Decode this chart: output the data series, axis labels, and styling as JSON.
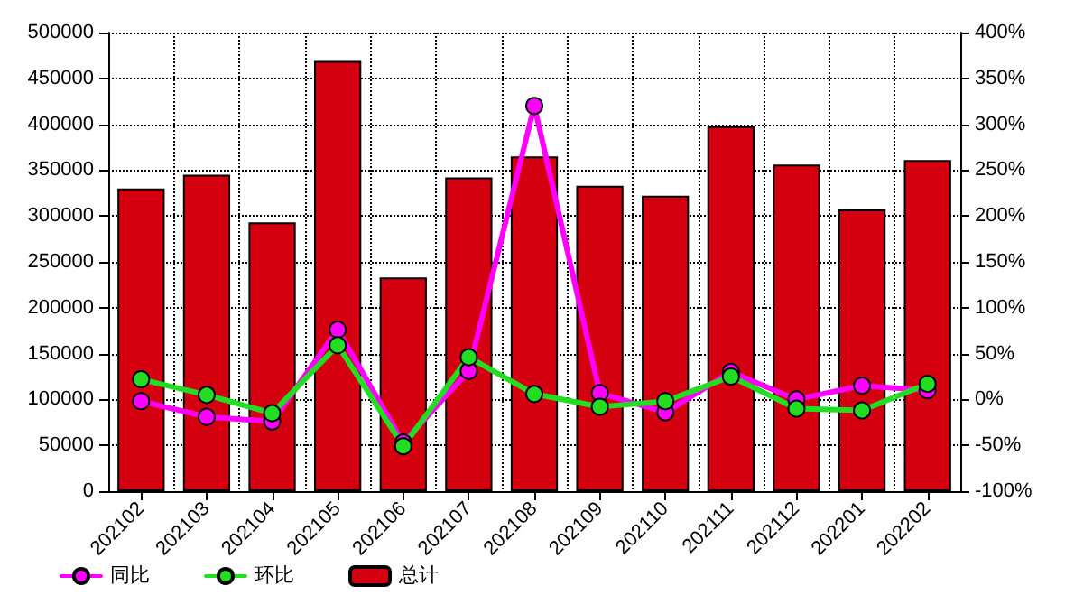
{
  "chart_data": {
    "type": "bar",
    "categories": [
      "202102",
      "202103",
      "202104",
      "202105",
      "202106",
      "202107",
      "202108",
      "202109",
      "202110",
      "202111",
      "202112",
      "202201",
      "202202"
    ],
    "series": [
      {
        "name": "同比",
        "type": "line",
        "axis": "y2",
        "color": "#ff00ff",
        "values": [
          -2,
          -19,
          -24,
          76,
          -47,
          31,
          320,
          7,
          -14,
          30,
          0,
          15,
          10
        ]
      },
      {
        "name": "环比",
        "type": "line",
        "axis": "y2",
        "color": "#22dd22",
        "values": [
          22,
          5,
          -15,
          59,
          -51,
          46,
          6,
          -8,
          -2,
          25,
          -10,
          -12,
          17
        ]
      },
      {
        "name": "总计",
        "color": "#d40010",
        "values": [
          330000,
          345000,
          293000,
          469000,
          233000,
          342000,
          365000,
          333000,
          322000,
          398000,
          356000,
          307000,
          361000
        ]
      }
    ],
    "ylim": [
      0,
      500000
    ],
    "yticks": [
      0,
      50000,
      100000,
      150000,
      200000,
      250000,
      300000,
      350000,
      400000,
      450000,
      500000
    ],
    "y2lim": [
      -100,
      400
    ],
    "y2ticks": [
      {
        "value": -100,
        "label": "-100%"
      },
      {
        "value": -50,
        "label": "-50%"
      },
      {
        "value": 0,
        "label": "0%"
      },
      {
        "value": 50,
        "label": "50%"
      },
      {
        "value": 100,
        "label": "100%"
      },
      {
        "value": 150,
        "label": "150%"
      },
      {
        "value": 200,
        "label": "200%"
      },
      {
        "value": 250,
        "label": "250%"
      },
      {
        "value": 300,
        "label": "300%"
      },
      {
        "value": 350,
        "label": "350%"
      },
      {
        "value": 400,
        "label": "400%"
      }
    ],
    "grid": true,
    "legend": "bottom left",
    "marker": "circle",
    "line_style": "solid"
  }
}
